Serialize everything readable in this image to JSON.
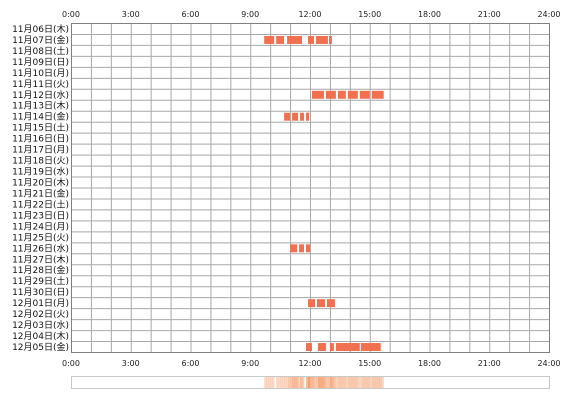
{
  "chart_data": {
    "type": "heatmap",
    "title": "",
    "xlabel": "",
    "ylabel": "",
    "xlim": [
      0,
      24
    ],
    "x_ticks": [
      "0:00",
      "3:00",
      "6:00",
      "9:00",
      "12:00",
      "15:00",
      "18:00",
      "21:00",
      "24:00"
    ],
    "grid": true,
    "bar_color": "#f07050",
    "summary_color": "#f5a070",
    "rows": [
      {
        "label": "11月06日(木)",
        "activity": []
      },
      {
        "label": "11月07日(金)",
        "activity": [
          [
            9.7,
            10.2
          ],
          [
            10.3,
            10.7
          ],
          [
            10.85,
            11.6
          ],
          [
            11.9,
            12.2
          ],
          [
            12.3,
            12.9
          ],
          [
            12.95,
            13.1
          ]
        ]
      },
      {
        "label": "11月08日(土)",
        "activity": []
      },
      {
        "label": "11月09日(日)",
        "activity": []
      },
      {
        "label": "11月10日(月)",
        "activity": []
      },
      {
        "label": "11月11日(火)",
        "activity": []
      },
      {
        "label": "11月12日(水)",
        "activity": [
          [
            12.1,
            12.7
          ],
          [
            12.8,
            13.3
          ],
          [
            13.4,
            13.8
          ],
          [
            13.9,
            14.4
          ],
          [
            14.5,
            15.0
          ],
          [
            15.1,
            15.7
          ]
        ]
      },
      {
        "label": "11月13日(木)",
        "activity": []
      },
      {
        "label": "11月14日(金)",
        "activity": [
          [
            10.7,
            11.0
          ],
          [
            11.1,
            11.4
          ],
          [
            11.5,
            11.7
          ],
          [
            11.8,
            11.95
          ]
        ]
      },
      {
        "label": "11月15日(土)",
        "activity": []
      },
      {
        "label": "11月16日(日)",
        "activity": []
      },
      {
        "label": "11月17日(月)",
        "activity": []
      },
      {
        "label": "11月18日(火)",
        "activity": []
      },
      {
        "label": "11月19日(水)",
        "activity": []
      },
      {
        "label": "11月20日(木)",
        "activity": []
      },
      {
        "label": "11月21日(金)",
        "activity": []
      },
      {
        "label": "11月22日(土)",
        "activity": []
      },
      {
        "label": "11月23日(日)",
        "activity": []
      },
      {
        "label": "11月24日(月)",
        "activity": []
      },
      {
        "label": "11月25日(火)",
        "activity": []
      },
      {
        "label": "11月26日(水)",
        "activity": [
          [
            11.0,
            11.35
          ],
          [
            11.45,
            11.7
          ],
          [
            11.8,
            12.0
          ]
        ]
      },
      {
        "label": "11月27日(木)",
        "activity": []
      },
      {
        "label": "11月28日(金)",
        "activity": []
      },
      {
        "label": "11月29日(土)",
        "activity": []
      },
      {
        "label": "11月30日(日)",
        "activity": []
      },
      {
        "label": "12月01日(月)",
        "activity": [
          [
            11.9,
            12.25
          ],
          [
            12.35,
            12.75
          ],
          [
            12.85,
            13.25
          ]
        ]
      },
      {
        "label": "12月02日(火)",
        "activity": []
      },
      {
        "label": "12月03日(水)",
        "activity": []
      },
      {
        "label": "12月04日(木)",
        "activity": []
      },
      {
        "label": "12月05日(金)",
        "activity": [
          [
            11.8,
            12.1
          ],
          [
            12.4,
            12.8
          ],
          [
            13.0,
            13.2
          ],
          [
            13.3,
            14.5
          ],
          [
            14.55,
            15.55
          ]
        ]
      }
    ]
  }
}
